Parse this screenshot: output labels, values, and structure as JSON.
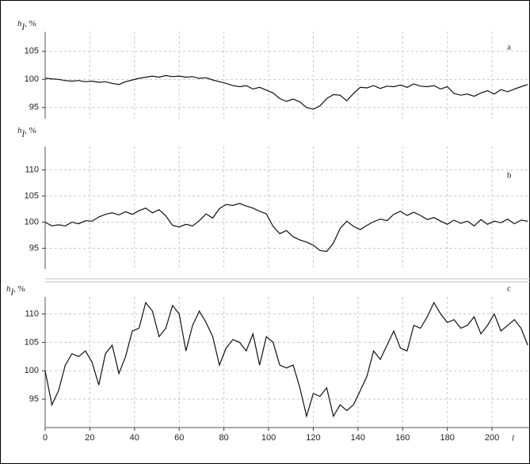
{
  "chart_data": [
    {
      "type": "line",
      "panel": "a",
      "ylabel": {
        "symbol": "h",
        "subscript": "l",
        "unit": ", %"
      },
      "x": [
        0,
        3,
        6,
        9,
        12,
        15,
        18,
        21,
        24,
        27,
        30,
        33,
        36,
        39,
        42,
        45,
        48,
        51,
        54,
        57,
        60,
        63,
        66,
        69,
        72,
        75,
        78,
        81,
        84,
        87,
        90,
        93,
        96,
        99,
        102,
        105,
        108,
        111,
        114,
        117,
        120,
        123,
        126,
        129,
        132,
        135,
        138,
        141,
        144,
        147,
        150,
        153,
        156,
        159,
        162,
        165,
        168,
        171,
        174,
        177,
        180,
        183,
        186,
        189,
        192,
        195,
        198,
        201,
        204,
        207,
        210,
        213,
        216
      ],
      "series": [
        {
          "color": "#111111",
          "values": [
            100.2,
            100.1,
            100,
            99.8,
            99.7,
            99.8,
            99.6,
            99.7,
            99.5,
            99.6,
            99.3,
            99.1,
            99.6,
            99.9,
            100.2,
            100.4,
            100.6,
            100.4,
            100.7,
            100.5,
            100.6,
            100.4,
            100.5,
            100.2,
            100.3,
            99.9,
            99.6,
            99.3,
            98.9,
            98.7,
            98.9,
            98.3,
            98.6,
            98.1,
            97.6,
            96.6,
            96.1,
            96.5,
            96.0,
            95.0,
            94.7,
            95.3,
            96.6,
            97.3,
            97.2,
            96.2,
            97.5,
            98.6,
            98.5,
            98.9,
            98.4,
            98.8,
            98.7,
            99.0,
            98.6,
            99.2,
            98.8,
            98.7,
            98.9,
            98.3,
            98.7,
            97.5,
            97.2,
            97.4,
            97.0,
            97.6,
            98.0,
            97.4,
            98.2,
            97.8,
            98.3,
            98.7,
            99.1
          ]
        }
      ],
      "xlim": [
        0,
        217
      ],
      "xticks": [
        0,
        20,
        40,
        60,
        80,
        100,
        120,
        140,
        160,
        180,
        200
      ],
      "ylim": [
        93,
        108.5
      ],
      "yticks": [
        95,
        100,
        105
      ],
      "grid": true
    },
    {
      "type": "line",
      "panel": "b",
      "ylabel": {
        "symbol": "h",
        "subscript": "l",
        "unit": ", %"
      },
      "x": [
        0,
        3,
        6,
        9,
        12,
        15,
        18,
        21,
        24,
        27,
        30,
        33,
        36,
        39,
        42,
        45,
        48,
        51,
        54,
        57,
        60,
        63,
        66,
        69,
        72,
        75,
        78,
        81,
        84,
        87,
        90,
        93,
        96,
        99,
        102,
        105,
        108,
        111,
        114,
        117,
        120,
        123,
        126,
        129,
        132,
        135,
        138,
        141,
        144,
        147,
        150,
        153,
        156,
        159,
        162,
        165,
        168,
        171,
        174,
        177,
        180,
        183,
        186,
        189,
        192,
        195,
        198,
        201,
        204,
        207,
        210,
        213,
        216
      ],
      "series": [
        {
          "color": "#111111",
          "values": [
            100,
            99.3,
            99.5,
            99.3,
            100,
            99.7,
            100.3,
            100.2,
            101,
            101.5,
            101.8,
            101.4,
            102,
            101.5,
            102.2,
            102.7,
            101.8,
            102.4,
            101.2,
            99.4,
            99.1,
            99.6,
            99.3,
            100.3,
            101.6,
            100.8,
            102.6,
            103.4,
            103.2,
            103.6,
            103.1,
            102.7,
            102.1,
            101.6,
            99.2,
            97.8,
            98.4,
            97.2,
            96.6,
            96.2,
            95.6,
            94.6,
            94.4,
            96.0,
            98.8,
            100.2,
            99.2,
            98.6,
            99.4,
            100.1,
            100.6,
            100.3,
            101.5,
            102.1,
            101.3,
            101.9,
            101.3,
            100.5,
            100.9,
            100.2,
            99.6,
            100.4,
            99.8,
            100.2,
            99.3,
            100.5,
            99.6,
            100.2,
            99.9,
            100.6,
            99.7,
            100.4,
            100.2
          ]
        }
      ],
      "xlim": [
        0,
        217
      ],
      "xticks": [
        0,
        20,
        40,
        60,
        80,
        100,
        120,
        140,
        160,
        180,
        200
      ],
      "ylim": [
        91,
        114.5
      ],
      "yticks": [
        95,
        100,
        105,
        110
      ],
      "grid": true
    },
    {
      "type": "line",
      "panel": "c",
      "ylabel": {
        "symbol": "h",
        "subscript": "l",
        "unit": ", %"
      },
      "xlabel": "l",
      "x": [
        0,
        3,
        6,
        9,
        12,
        15,
        18,
        21,
        24,
        27,
        30,
        33,
        36,
        39,
        42,
        45,
        48,
        51,
        54,
        57,
        60,
        63,
        66,
        69,
        72,
        75,
        78,
        81,
        84,
        87,
        90,
        93,
        96,
        99,
        102,
        105,
        108,
        111,
        114,
        117,
        120,
        123,
        126,
        129,
        132,
        135,
        138,
        141,
        144,
        147,
        150,
        153,
        156,
        159,
        162,
        165,
        168,
        171,
        174,
        177,
        180,
        183,
        186,
        189,
        192,
        195,
        198,
        201,
        204,
        207,
        210,
        213,
        216
      ],
      "series": [
        {
          "color": "#111111",
          "values": [
            100,
            94,
            96.5,
            101,
            103,
            102.5,
            103.5,
            101.5,
            97.5,
            103,
            104.5,
            99.5,
            102.5,
            107,
            107.5,
            112,
            110.5,
            106,
            107.5,
            111.5,
            110,
            103.5,
            108,
            110.5,
            108.5,
            106,
            101,
            104,
            105.5,
            105,
            103.5,
            106.5,
            101,
            106,
            105,
            101,
            100.5,
            101,
            97,
            92,
            96,
            95.5,
            97,
            92,
            94,
            93,
            94,
            96.5,
            99,
            103.5,
            102,
            104.5,
            107,
            104,
            103.5,
            108,
            107.5,
            109.5,
            112,
            110,
            108.5,
            109,
            107.5,
            108,
            109.5,
            106.5,
            108,
            110,
            107,
            108,
            109,
            107.5,
            104.5
          ]
        }
      ],
      "xlim": [
        0,
        217
      ],
      "xticks": [
        0,
        20,
        40,
        60,
        80,
        100,
        120,
        140,
        160,
        180,
        200
      ],
      "ylim": [
        90,
        113
      ],
      "yticks": [
        95,
        100,
        105,
        110
      ],
      "grid": true
    }
  ]
}
